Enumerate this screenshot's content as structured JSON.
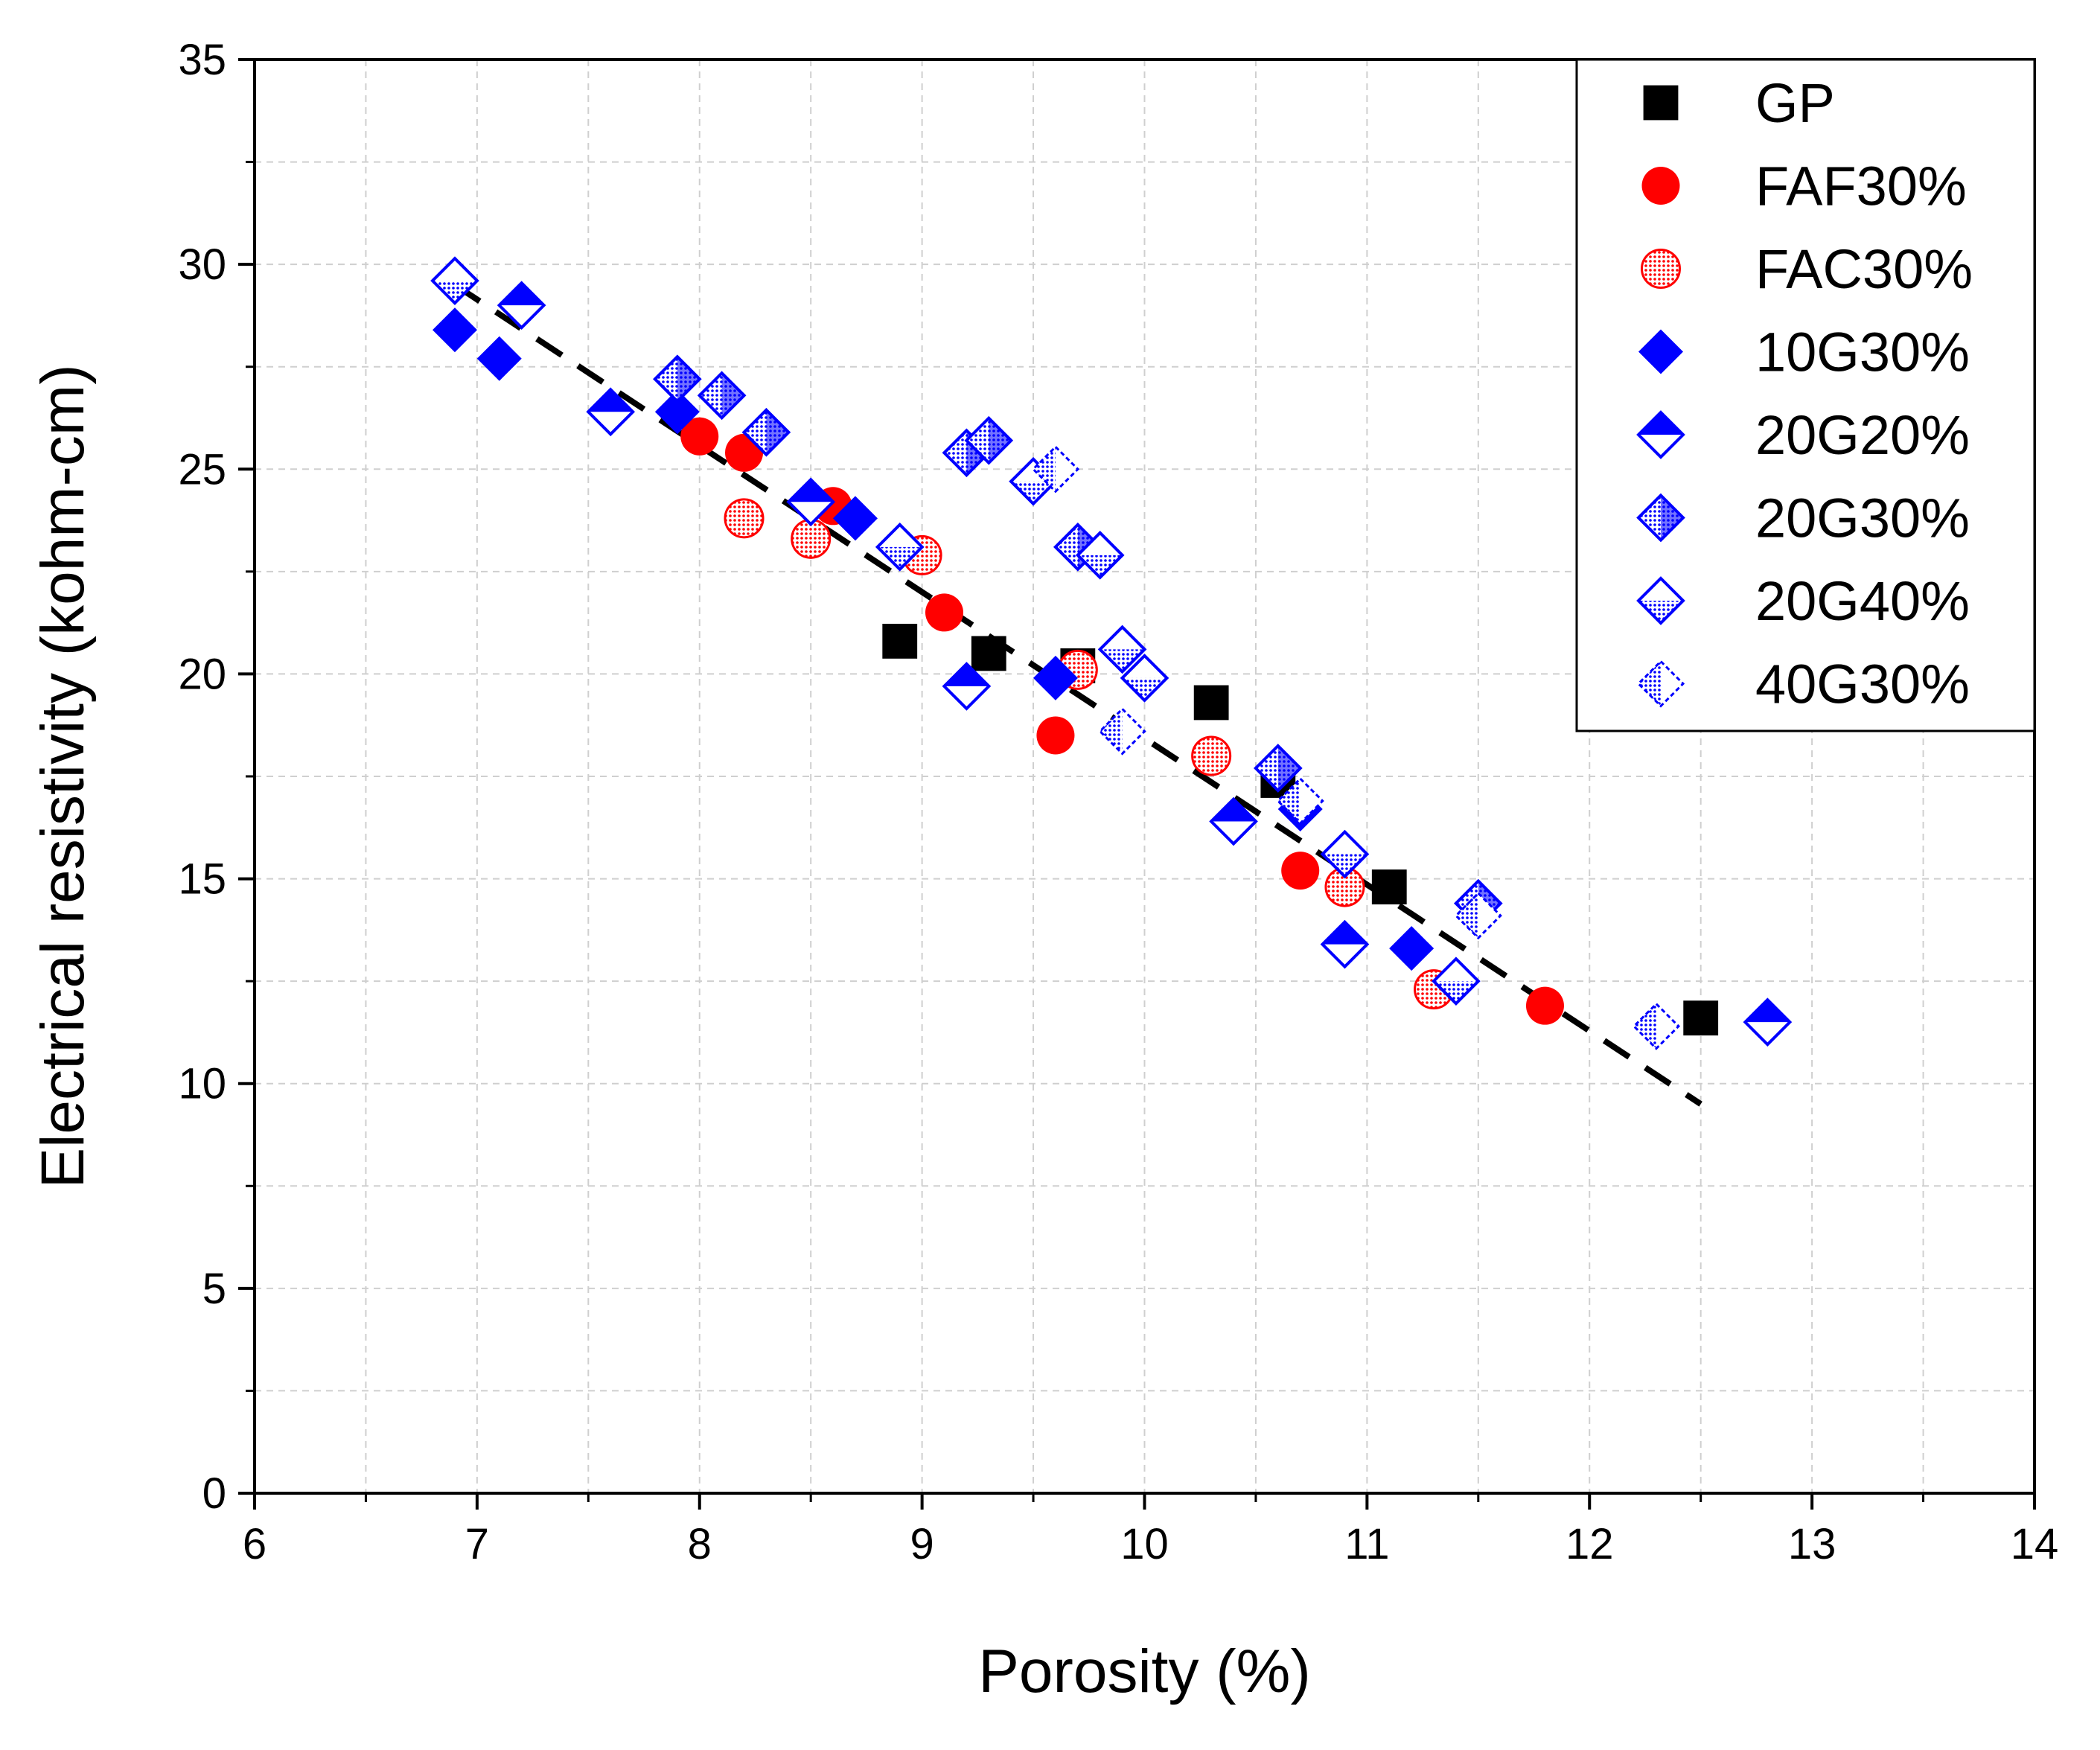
{
  "chart_data": {
    "type": "scatter",
    "xlabel": "Porosity (%)",
    "ylabel": "Electrical resistivity (kohm-cm)",
    "xlim": [
      6,
      14
    ],
    "ylim": [
      0,
      35
    ],
    "xticks": [
      6,
      7,
      8,
      9,
      10,
      11,
      12,
      13,
      14
    ],
    "yticks": [
      0,
      5,
      10,
      15,
      20,
      25,
      30,
      35
    ],
    "grid": true,
    "legend_position": "top-right",
    "trendline": {
      "style": "dashed",
      "color": "#000000",
      "points": [
        [
          6.9,
          29.5
        ],
        [
          12.5,
          9.5
        ]
      ]
    },
    "series": [
      {
        "name": "GP",
        "marker": "square-filled",
        "color": "#000000",
        "points": [
          [
            8.9,
            20.8
          ],
          [
            9.3,
            20.5
          ],
          [
            9.7,
            20.2
          ],
          [
            10.3,
            19.3
          ],
          [
            10.6,
            17.4
          ],
          [
            11.1,
            14.8
          ],
          [
            12.5,
            11.6
          ]
        ]
      },
      {
        "name": "FAF30%",
        "marker": "circle-filled",
        "color": "#ff0000",
        "points": [
          [
            8.0,
            25.8
          ],
          [
            8.2,
            25.4
          ],
          [
            8.6,
            24.1
          ],
          [
            9.1,
            21.5
          ],
          [
            9.6,
            18.5
          ],
          [
            10.7,
            15.2
          ],
          [
            11.8,
            11.9
          ]
        ]
      },
      {
        "name": "FAC30%",
        "marker": "circle-dotted",
        "color": "#ff0000",
        "points": [
          [
            8.2,
            23.8
          ],
          [
            8.5,
            23.3
          ],
          [
            9.0,
            22.9
          ],
          [
            9.7,
            20.1
          ],
          [
            10.3,
            18.0
          ],
          [
            10.9,
            14.8
          ],
          [
            11.3,
            12.3
          ]
        ]
      },
      {
        "name": "10G30%",
        "marker": "diamond-filled",
        "color": "#0000ff",
        "points": [
          [
            6.9,
            28.4
          ],
          [
            7.1,
            27.7
          ],
          [
            7.9,
            26.4
          ],
          [
            8.7,
            23.8
          ],
          [
            9.6,
            19.9
          ],
          [
            10.7,
            16.7
          ],
          [
            11.2,
            13.3
          ]
        ]
      },
      {
        "name": "20G20%",
        "marker": "diamond-half-top",
        "color": "#0000ff",
        "points": [
          [
            7.2,
            29.0
          ],
          [
            7.6,
            26.4
          ],
          [
            8.5,
            24.2
          ],
          [
            9.2,
            19.7
          ],
          [
            10.4,
            16.4
          ],
          [
            10.9,
            13.4
          ],
          [
            12.8,
            11.5
          ]
        ]
      },
      {
        "name": "20G30%",
        "marker": "diamond-dotted",
        "color": "#0000ff",
        "points": [
          [
            7.9,
            27.2
          ],
          [
            8.1,
            26.8
          ],
          [
            8.3,
            25.9
          ],
          [
            9.2,
            25.4
          ],
          [
            9.3,
            25.7
          ],
          [
            9.7,
            23.1
          ],
          [
            10.6,
            17.7
          ],
          [
            11.5,
            14.4
          ]
        ]
      },
      {
        "name": "20G40%",
        "marker": "diamond-dotted-bottom",
        "color": "#0000ff",
        "points": [
          [
            6.9,
            29.6
          ],
          [
            8.9,
            23.1
          ],
          [
            9.5,
            24.7
          ],
          [
            9.8,
            22.9
          ],
          [
            9.9,
            20.6
          ],
          [
            10.0,
            19.9
          ],
          [
            10.9,
            15.6
          ],
          [
            11.4,
            12.5
          ]
        ]
      },
      {
        "name": "40G30%",
        "marker": "diamond-dotted-left",
        "color": "#0000ff",
        "points": [
          [
            9.6,
            25.0
          ],
          [
            9.9,
            18.6
          ],
          [
            10.7,
            16.9
          ],
          [
            11.5,
            14.1
          ],
          [
            12.3,
            11.4
          ]
        ]
      }
    ]
  }
}
